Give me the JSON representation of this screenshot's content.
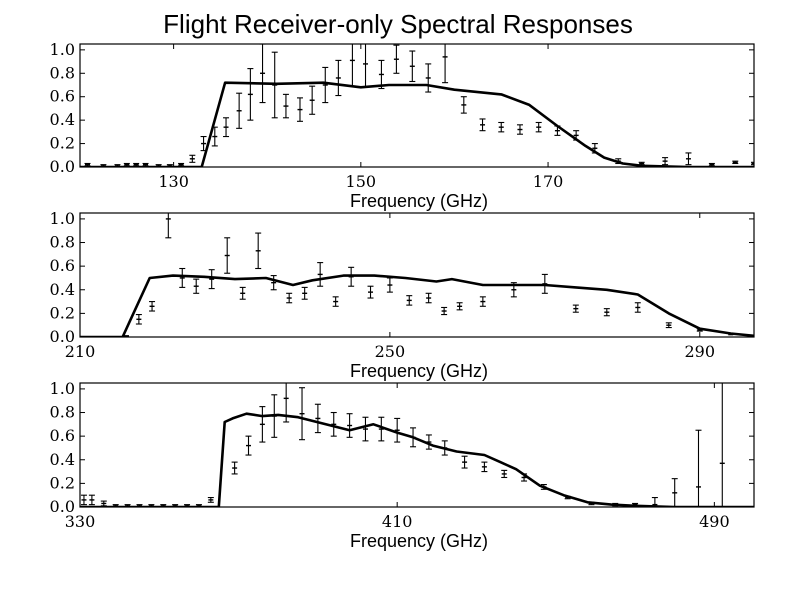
{
  "title": "Flight Receiver-only Spectral Responses",
  "colors": {
    "line": "#000000",
    "axes": "#000000",
    "background": "#ffffff"
  },
  "chart_data": [
    {
      "type": "line",
      "title": "Flight Receiver-only Spectral Responses",
      "xlabel": "Frequency (GHz)",
      "ylabel": "",
      "xlim": [
        120,
        192
      ],
      "ylim": [
        0,
        1.05
      ],
      "xticks": [
        130,
        150,
        170
      ],
      "yticks": [
        0.0,
        0.2,
        0.4,
        0.6,
        0.8,
        1.0
      ],
      "grid": false,
      "series": [
        {
          "kind": "line",
          "x": [
            120,
            133.0,
            135.5,
            141,
            146,
            150,
            153,
            157,
            160,
            165,
            168,
            171,
            174,
            176,
            178,
            180,
            185,
            192
          ],
          "y": [
            0,
            0,
            0.72,
            0.71,
            0.72,
            0.68,
            0.7,
            0.7,
            0.66,
            0.62,
            0.53,
            0.35,
            0.18,
            0.08,
            0.03,
            0.01,
            0.0,
            0.0
          ]
        },
        {
          "kind": "errorbar",
          "x": [
            120.8,
            122.5,
            124,
            125,
            126,
            127,
            128.4,
            129.6,
            130.8,
            132,
            133.2,
            134.4,
            135.6,
            137,
            138.2,
            139.5,
            140.8,
            142,
            143.5,
            144.8,
            146.2,
            147.6,
            149.1,
            150.5,
            152.2,
            153.8,
            155.5,
            157.2,
            159,
            161,
            163,
            165,
            167,
            169,
            171,
            173,
            175,
            177.5,
            180,
            182.5,
            185,
            187.5,
            190,
            192
          ],
          "y": [
            0.02,
            0.01,
            0.01,
            0.02,
            0.02,
            0.02,
            0.01,
            0.01,
            0.02,
            0.07,
            0.2,
            0.26,
            0.34,
            0.48,
            0.62,
            0.8,
            0.7,
            0.52,
            0.49,
            0.57,
            0.7,
            0.76,
            0.91,
            0.88,
            0.79,
            0.92,
            0.86,
            0.76,
            0.94,
            0.53,
            0.36,
            0.34,
            0.32,
            0.34,
            0.31,
            0.27,
            0.16,
            0.05,
            0.03,
            0.05,
            0.07,
            0.02,
            0.04,
            0.03
          ],
          "err": [
            0.01,
            0.01,
            0.01,
            0.01,
            0.01,
            0.01,
            0.01,
            0.01,
            0.01,
            0.03,
            0.06,
            0.08,
            0.08,
            0.15,
            0.22,
            0.25,
            0.28,
            0.1,
            0.1,
            0.12,
            0.15,
            0.15,
            0.22,
            0.2,
            0.12,
            0.12,
            0.13,
            0.12,
            0.22,
            0.07,
            0.05,
            0.04,
            0.04,
            0.04,
            0.04,
            0.04,
            0.04,
            0.02,
            0.01,
            0.03,
            0.05,
            0.01,
            0.01,
            0.01
          ]
        }
      ]
    },
    {
      "type": "line",
      "title": "",
      "xlabel": "Frequency (GHz)",
      "ylabel": "",
      "xlim": [
        210,
        297
      ],
      "ylim": [
        0,
        1.05
      ],
      "xticks": [
        210,
        250,
        290
      ],
      "yticks": [
        0.0,
        0.2,
        0.4,
        0.6,
        0.8,
        1.0
      ],
      "grid": false,
      "series": [
        {
          "kind": "line",
          "x": [
            210,
            215.5,
            219,
            222,
            226,
            230,
            234,
            237.5,
            240,
            244,
            248,
            252,
            256,
            258,
            262,
            266,
            270,
            274,
            278,
            282,
            286,
            290,
            294,
            297
          ],
          "y": [
            0,
            0,
            0.5,
            0.52,
            0.51,
            0.49,
            0.5,
            0.44,
            0.48,
            0.52,
            0.52,
            0.5,
            0.47,
            0.49,
            0.44,
            0.44,
            0.44,
            0.42,
            0.4,
            0.36,
            0.2,
            0.07,
            0.03,
            0.01
          ]
        },
        {
          "kind": "errorbar",
          "x": [
            210.5,
            212,
            213.5,
            214.5,
            216,
            217.6,
            219.3,
            221.4,
            223.2,
            225,
            227,
            229,
            231,
            233,
            235,
            237,
            239,
            241,
            243,
            245,
            247.5,
            250,
            252.5,
            255,
            257,
            259,
            262,
            266,
            270,
            274,
            278,
            282,
            286,
            290,
            294
          ],
          "y": [
            0.0,
            0.0,
            0.0,
            0.0,
            0.01,
            0.15,
            0.26,
            1.0,
            0.5,
            0.43,
            0.49,
            0.69,
            0.37,
            0.73,
            0.46,
            0.33,
            0.37,
            0.53,
            0.3,
            0.51,
            0.38,
            0.44,
            0.31,
            0.33,
            0.22,
            0.26,
            0.3,
            0.4,
            0.45,
            0.24,
            0.21,
            0.25,
            0.1,
            0.06,
            0.02
          ],
          "err": [
            0.0,
            0.0,
            0.0,
            0.0,
            0.0,
            0.04,
            0.04,
            0.16,
            0.08,
            0.06,
            0.08,
            0.15,
            0.05,
            0.15,
            0.06,
            0.04,
            0.05,
            0.1,
            0.04,
            0.08,
            0.05,
            0.06,
            0.04,
            0.04,
            0.03,
            0.03,
            0.04,
            0.06,
            0.08,
            0.03,
            0.03,
            0.04,
            0.02,
            0.01,
            0.0
          ]
        }
      ]
    },
    {
      "type": "line",
      "title": "",
      "xlabel": "Frequency (GHz)",
      "ylabel": "",
      "xlim": [
        330,
        500
      ],
      "ylim": [
        0,
        1.05
      ],
      "xticks": [
        330,
        410,
        490
      ],
      "yticks": [
        0.0,
        0.2,
        0.4,
        0.6,
        0.8,
        1.0
      ],
      "grid": false,
      "series": [
        {
          "kind": "line",
          "x": [
            330,
            365,
            366.5,
            368.5,
            372,
            376,
            380,
            385,
            392,
            398,
            404,
            410,
            414,
            419,
            425,
            432,
            436,
            440,
            446,
            452,
            458,
            464,
            470,
            480,
            500
          ],
          "y": [
            0,
            0,
            0.72,
            0.75,
            0.79,
            0.77,
            0.78,
            0.76,
            0.7,
            0.65,
            0.7,
            0.63,
            0.59,
            0.52,
            0.47,
            0.44,
            0.38,
            0.32,
            0.18,
            0.1,
            0.04,
            0.02,
            0.01,
            0.0,
            0.0
          ]
        },
        {
          "kind": "errorbar",
          "x": [
            331,
            333,
            336,
            339,
            342,
            345,
            348,
            351,
            354,
            357,
            360,
            363,
            369,
            372.5,
            376,
            379,
            382,
            386,
            390,
            394,
            398,
            402,
            406,
            410,
            414,
            418,
            422,
            427,
            432,
            437,
            442,
            447,
            453,
            459,
            465,
            470,
            475,
            480,
            486,
            492
          ],
          "y": [
            0.06,
            0.06,
            0.03,
            0.01,
            0.01,
            0.01,
            0.01,
            0.01,
            0.01,
            0.01,
            0.01,
            0.06,
            0.33,
            0.52,
            0.7,
            0.77,
            0.92,
            0.79,
            0.75,
            0.7,
            0.69,
            0.66,
            0.66,
            0.65,
            0.59,
            0.55,
            0.5,
            0.38,
            0.34,
            0.28,
            0.25,
            0.17,
            0.08,
            0.03,
            0.02,
            0.02,
            0.02,
            0.12,
            0.17,
            0.37
          ],
          "err": [
            0.04,
            0.04,
            0.02,
            0.01,
            0.01,
            0.01,
            0.01,
            0.01,
            0.01,
            0.01,
            0.01,
            0.02,
            0.05,
            0.08,
            0.15,
            0.18,
            0.2,
            0.22,
            0.12,
            0.1,
            0.1,
            0.1,
            0.1,
            0.1,
            0.08,
            0.06,
            0.06,
            0.05,
            0.04,
            0.03,
            0.03,
            0.02,
            0.01,
            0.01,
            0.01,
            0.01,
            0.06,
            0.12,
            0.48,
            0.7
          ]
        }
      ]
    }
  ]
}
